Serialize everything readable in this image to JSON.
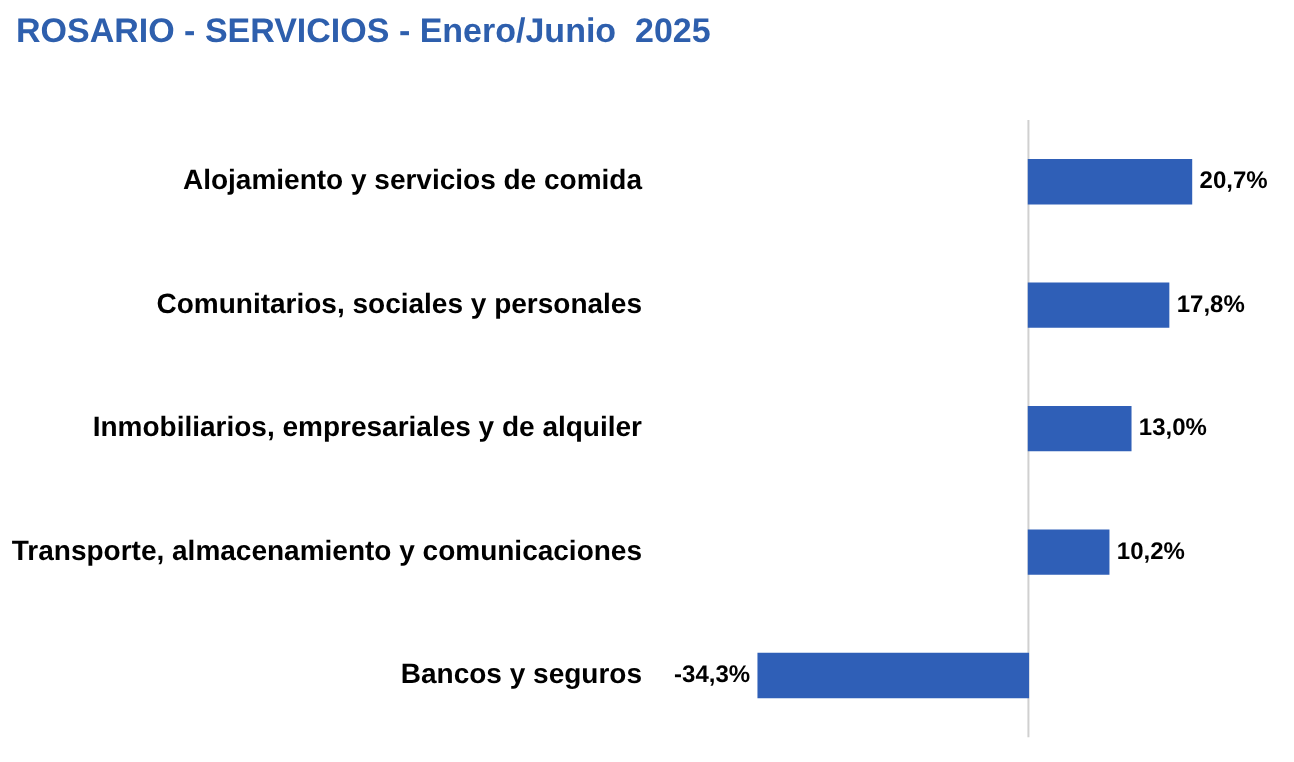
{
  "chart_data": {
    "type": "bar",
    "orientation": "horizontal",
    "title": "ROSARIO - SERVICIOS - Enero/Junio  2025",
    "categories": [
      "Alojamiento y servicios de comida",
      "Comunitarios, sociales y personales",
      "Inmobiliarios, empresariales y de alquiler",
      "Transporte, almacenamiento y comunicaciones",
      "Bancos y seguros"
    ],
    "values": [
      20.7,
      17.8,
      13.0,
      10.2,
      -34.3
    ],
    "value_labels": [
      "20,7%",
      "17,8%",
      "13,0%",
      "10,2%",
      "-34,3%"
    ],
    "color": "#2f5fb7",
    "grid": false,
    "legend": false
  }
}
